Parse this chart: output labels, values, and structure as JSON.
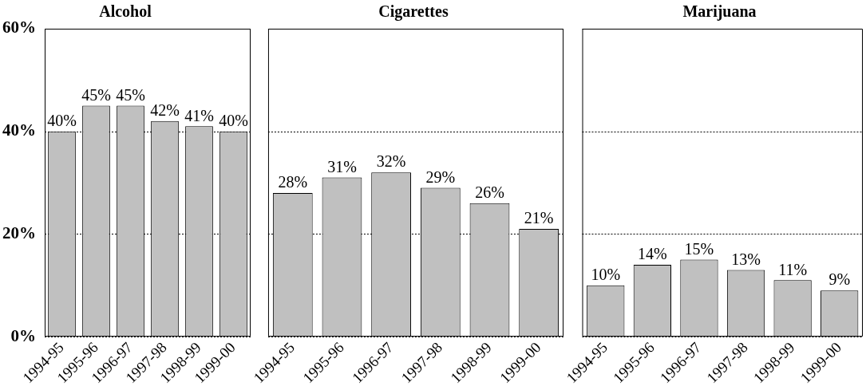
{
  "chart_data": [
    {
      "type": "bar",
      "title": "Alcohol",
      "categories": [
        "1994-95",
        "1995-96",
        "1996-97",
        "1997-98",
        "1998-99",
        "1999-00"
      ],
      "values": [
        40,
        45,
        45,
        42,
        41,
        40
      ],
      "value_labels": [
        "40%",
        "45%",
        "45%",
        "42%",
        "41%",
        "40%"
      ],
      "color": "#c0c0c0",
      "ylim": [
        0,
        60
      ],
      "yticks": [
        {
          "value": 0,
          "label": "0%"
        },
        {
          "value": 20,
          "label": "20%"
        },
        {
          "value": 40,
          "label": "40%"
        },
        {
          "value": 60,
          "label": "60%"
        }
      ],
      "grid": "y"
    },
    {
      "type": "bar",
      "title": "Cigarettes",
      "categories": [
        "1994-95",
        "1995-96",
        "1996-97",
        "1997-98",
        "1998-99",
        "1999-00"
      ],
      "values": [
        28,
        31,
        32,
        29,
        26,
        21
      ],
      "value_labels": [
        "28%",
        "31%",
        "32%",
        "29%",
        "26%",
        "21%"
      ],
      "color": "#c0c0c0",
      "ylim": [
        0,
        60
      ],
      "yticks": [
        0,
        20,
        40,
        60
      ],
      "grid": "y",
      "tick_labels": "x"
    },
    {
      "type": "bar",
      "title": "Marijuana",
      "categories": [
        "1994-95",
        "1995-96",
        "1996-97",
        "1997-98",
        "1998-99",
        "1999-00"
      ],
      "values": [
        10,
        14,
        15,
        13,
        11,
        9
      ],
      "value_labels": [
        "10%",
        "14%",
        "15%",
        "13%",
        "11%",
        "9%"
      ],
      "color": "#c0c0c0",
      "ylim": [
        0,
        60
      ],
      "yticks": [
        0,
        20,
        40,
        60
      ],
      "grid": "y",
      "tick_labels": "x"
    }
  ]
}
